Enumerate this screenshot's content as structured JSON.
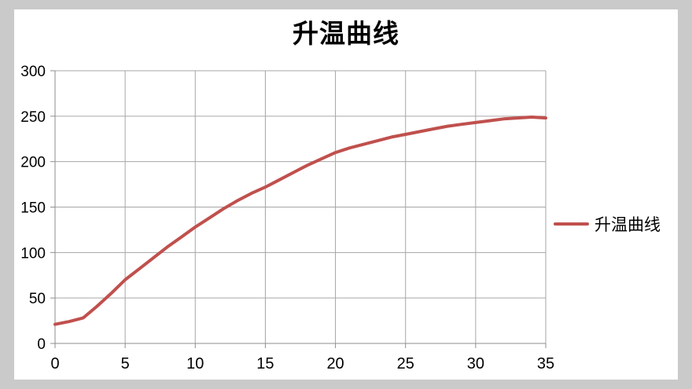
{
  "window": {
    "background_color": "#CACACA",
    "chart_background_color": "#FFFFFF"
  },
  "chart_data": {
    "type": "line",
    "title": "升温曲线",
    "xlabel": "",
    "ylabel": "",
    "xlim": [
      0,
      35
    ],
    "ylim": [
      0,
      300
    ],
    "x_ticks": [
      0,
      5,
      10,
      15,
      20,
      25,
      30,
      35
    ],
    "y_ticks": [
      0,
      50,
      100,
      150,
      200,
      250,
      300
    ],
    "grid": true,
    "legend_position": "right",
    "gridline_color": "#A6A6A6",
    "axis_color": "#8E8E8E",
    "tick_label_color": "#000000",
    "series": [
      {
        "name": "升温曲线",
        "color": "#C0504D",
        "line_width": 4,
        "x": [
          0,
          1,
          2,
          3,
          4,
          5,
          6,
          7,
          8,
          9,
          10,
          11,
          12,
          13,
          14,
          15,
          16,
          17,
          18,
          19,
          20,
          21,
          22,
          23,
          24,
          25,
          26,
          27,
          28,
          29,
          30,
          31,
          32,
          33,
          34,
          35
        ],
        "values": [
          21,
          24,
          28,
          41,
          55,
          70,
          82,
          94,
          106,
          117,
          128,
          138,
          148,
          157,
          165,
          172,
          180,
          188,
          196,
          203,
          210,
          215,
          219,
          223,
          227,
          230,
          233,
          236,
          239,
          241,
          243,
          245,
          247,
          248,
          249,
          248
        ]
      }
    ]
  },
  "legend": {
    "entries": [
      {
        "label": "升温曲线",
        "color": "#C0504D"
      }
    ]
  }
}
